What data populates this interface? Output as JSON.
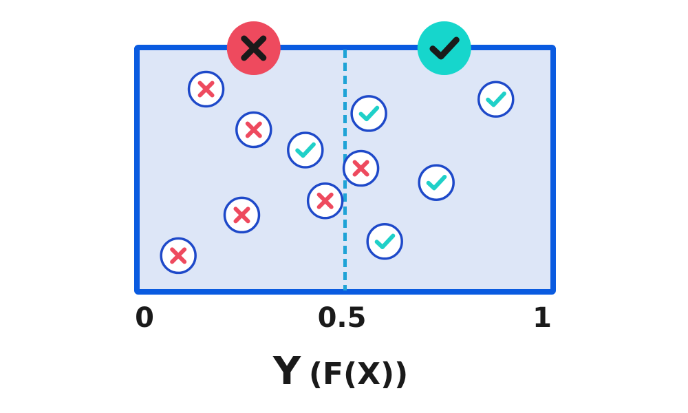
{
  "chart_data": {
    "type": "scatter",
    "xlabel": "Y",
    "xlabel_suffix": "(F(X))",
    "xlim": [
      0,
      1
    ],
    "x_ticks": [
      "0",
      "0.5",
      "1"
    ],
    "threshold": 0.5,
    "classes": {
      "negative": {
        "marker": "cross",
        "color": "#ee4a5e",
        "header_fill": "#ee4a5e",
        "header_mark_color": "#1a1a1a",
        "header_x": 0.27
      },
      "positive": {
        "marker": "check",
        "color": "#1fd0c8",
        "header_fill": "#16d6cc",
        "header_mark_color": "#1a1a1a",
        "header_x": 0.75
      }
    },
    "points": [
      {
        "x": 0.15,
        "y": 0.9,
        "class": "negative"
      },
      {
        "x": 0.27,
        "y": 0.7,
        "class": "negative"
      },
      {
        "x": 0.4,
        "y": 0.6,
        "class": "positive"
      },
      {
        "x": 0.54,
        "y": 0.51,
        "class": "negative"
      },
      {
        "x": 0.45,
        "y": 0.35,
        "class": "negative"
      },
      {
        "x": 0.24,
        "y": 0.28,
        "class": "negative"
      },
      {
        "x": 0.08,
        "y": 0.08,
        "class": "negative"
      },
      {
        "x": 0.56,
        "y": 0.78,
        "class": "positive"
      },
      {
        "x": 0.88,
        "y": 0.85,
        "class": "positive"
      },
      {
        "x": 0.73,
        "y": 0.44,
        "class": "positive"
      },
      {
        "x": 0.6,
        "y": 0.15,
        "class": "positive"
      }
    ],
    "colors": {
      "frame": "#0a5be0",
      "fill": "#dde6f7",
      "threshold_line": "#1fa3d6",
      "marker_ring": "#1e49c9",
      "marker_bg": "#ffffff"
    }
  }
}
